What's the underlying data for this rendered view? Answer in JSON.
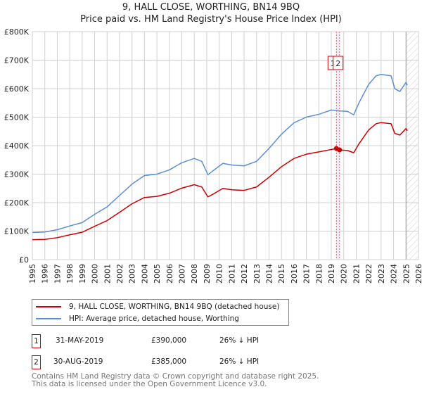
{
  "title_line1": "9, HALL CLOSE, WORTHING, BN14 9BQ",
  "title_line2": "Price paid vs. HM Land Registry's House Price Index (HPI)",
  "chart_data": {
    "type": "line",
    "ylim": [
      0,
      800000
    ],
    "xlim": [
      1995,
      2026
    ],
    "yticks": [
      0,
      100000,
      200000,
      300000,
      400000,
      500000,
      600000,
      700000,
      800000
    ],
    "ytick_labels": [
      "£0",
      "£100K",
      "£200K",
      "£300K",
      "£400K",
      "£500K",
      "£600K",
      "£700K",
      "£800K"
    ],
    "xtick_labels": [
      "1995",
      "1996",
      "1997",
      "1998",
      "1999",
      "2000",
      "2001",
      "2002",
      "2003",
      "2004",
      "2005",
      "2006",
      "2007",
      "2008",
      "2009",
      "2010",
      "2011",
      "2012",
      "2013",
      "2014",
      "2015",
      "2016",
      "2017",
      "2018",
      "2019",
      "2020",
      "2021",
      "2022",
      "2023",
      "2024",
      "2025",
      "2026"
    ],
    "grid": true,
    "series": [
      {
        "name": "9, HALL CLOSE, WORTHING, BN14 9BQ (detached house)",
        "color": "#cc0000",
        "points": [
          [
            1995,
            70000
          ],
          [
            1996,
            71000
          ],
          [
            1997,
            77000
          ],
          [
            1998,
            87000
          ],
          [
            1999,
            96000
          ],
          [
            2000,
            117000
          ],
          [
            2001,
            137000
          ],
          [
            2002,
            166000
          ],
          [
            2003,
            196000
          ],
          [
            2004,
            218000
          ],
          [
            2005,
            222000
          ],
          [
            2006,
            233000
          ],
          [
            2007,
            251000
          ],
          [
            2008,
            263000
          ],
          [
            2008.6,
            255000
          ],
          [
            2009.1,
            220000
          ],
          [
            2009.6,
            232000
          ],
          [
            2010.3,
            250000
          ],
          [
            2011,
            245000
          ],
          [
            2012,
            243000
          ],
          [
            2013,
            255000
          ],
          [
            2014,
            289000
          ],
          [
            2015,
            326000
          ],
          [
            2016,
            355000
          ],
          [
            2017,
            370000
          ],
          [
            2018,
            378000
          ],
          [
            2019.41,
            390000
          ],
          [
            2019.66,
            385000
          ],
          [
            2020.3,
            383000
          ],
          [
            2020.8,
            375000
          ],
          [
            2021.2,
            405000
          ],
          [
            2022,
            455000
          ],
          [
            2022.6,
            477000
          ],
          [
            2023,
            481000
          ],
          [
            2023.8,
            477000
          ],
          [
            2024.1,
            443000
          ],
          [
            2024.5,
            437000
          ],
          [
            2025,
            460000
          ],
          [
            2025.1,
            452000
          ]
        ]
      },
      {
        "name": "HPI: Average price, detached house, Worthing",
        "color": "#5b8fd4",
        "points": [
          [
            1995,
            95000
          ],
          [
            1996,
            97000
          ],
          [
            1997,
            105000
          ],
          [
            1998,
            118000
          ],
          [
            1999,
            130000
          ],
          [
            2000,
            159000
          ],
          [
            2001,
            185000
          ],
          [
            2002,
            225000
          ],
          [
            2003,
            265000
          ],
          [
            2004,
            295000
          ],
          [
            2005,
            300000
          ],
          [
            2006,
            315000
          ],
          [
            2007,
            340000
          ],
          [
            2008,
            355000
          ],
          [
            2008.6,
            345000
          ],
          [
            2009.1,
            298000
          ],
          [
            2009.6,
            315000
          ],
          [
            2010.3,
            338000
          ],
          [
            2011,
            332000
          ],
          [
            2012,
            329000
          ],
          [
            2013,
            345000
          ],
          [
            2014,
            390000
          ],
          [
            2015,
            440000
          ],
          [
            2016,
            480000
          ],
          [
            2017,
            500000
          ],
          [
            2018,
            510000
          ],
          [
            2019,
            525000
          ],
          [
            2019.66,
            522000
          ],
          [
            2020.3,
            520000
          ],
          [
            2020.8,
            508000
          ],
          [
            2021.2,
            548000
          ],
          [
            2022,
            615000
          ],
          [
            2022.6,
            645000
          ],
          [
            2023,
            650000
          ],
          [
            2023.8,
            645000
          ],
          [
            2024.1,
            600000
          ],
          [
            2024.5,
            590000
          ],
          [
            2025,
            622000
          ],
          [
            2025.1,
            612000
          ]
        ]
      }
    ],
    "sales": [
      {
        "id": "1",
        "x": 2019.41,
        "date": "31-MAY-2019",
        "price": "£390,000",
        "hpi": "26% ↓ HPI",
        "value": 390000
      },
      {
        "id": "2",
        "x": 2019.66,
        "date": "30-AUG-2019",
        "price": "£385,000",
        "hpi": "26% ↓ HPI",
        "value": 385000
      }
    ],
    "forecast_start": 2025.0
  },
  "footer_line1": "Contains HM Land Registry data © Crown copyright and database right 2025.",
  "footer_line2": "This data is licensed under the Open Government Licence v3.0."
}
